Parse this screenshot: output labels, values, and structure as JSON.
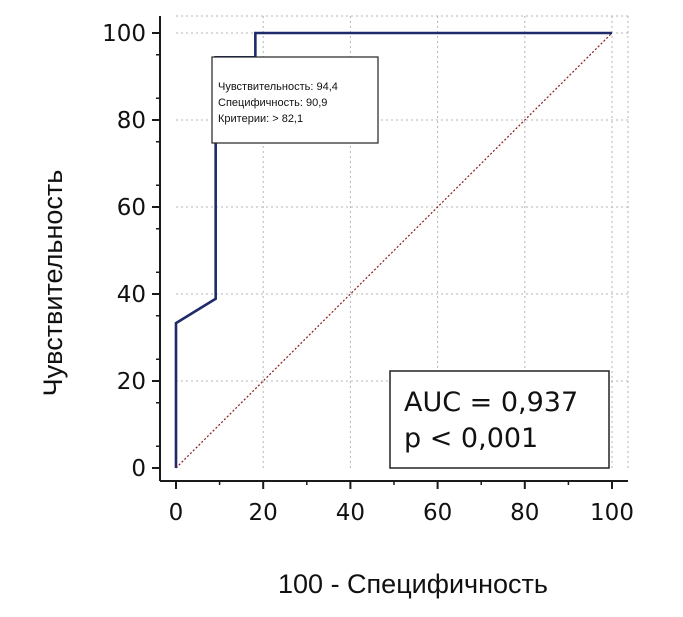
{
  "chart_data": {
    "type": "line",
    "xlabel": "100 - Специфичность",
    "ylabel": "Чувствительность",
    "xlim": [
      0,
      100
    ],
    "ylim": [
      0,
      100
    ],
    "x_ticks": [
      "0",
      "20",
      "40",
      "60",
      "80",
      "100"
    ],
    "y_ticks": [
      "0",
      "20",
      "40",
      "60",
      "80",
      "100"
    ],
    "grid": true,
    "series": [
      {
        "color": "#1f2a6b",
        "x": [
          0,
          0,
          9.1,
          9.1,
          18.2,
          18.2,
          100
        ],
        "y": [
          0,
          33.3,
          38.9,
          94.4,
          94.4,
          100,
          100
        ]
      },
      {
        "color": "#8b1a1a",
        "style": "dotted",
        "x": [
          0,
          100
        ],
        "y": [
          0,
          100
        ]
      }
    ],
    "annotations": {
      "tooltip": {
        "lines": [
          "Чувствительность: 94,4",
          "Специфичность: 90,9",
          "Критерии: > 82,1"
        ]
      },
      "stats": {
        "lines": [
          "AUC = 0,937",
          "p < 0,001"
        ]
      }
    }
  }
}
